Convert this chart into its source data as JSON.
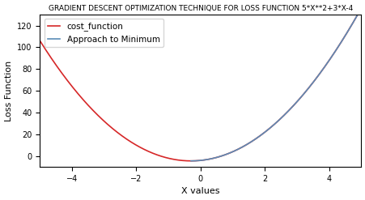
{
  "title": "GRADIENT DESCENT OPTIMIZATION TECHNIQUE FOR LOSS FUNCTION 5*X**2+3*X-4",
  "xlabel": "X values",
  "ylabel": "Loss Function",
  "x_full_start": -5,
  "x_full_end": 5,
  "x_approach_start": -0.3,
  "cost_color": "#d62728",
  "approach_color": "#5b8db8",
  "cost_label": "cost_function",
  "approach_label": "Approach to Minimum",
  "xlim": [
    -5,
    5
  ],
  "ylim": [
    -10,
    130
  ],
  "title_fontsize": 6.5,
  "axis_label_fontsize": 8,
  "tick_fontsize": 7,
  "legend_fontsize": 7.5,
  "linewidth": 1.2
}
